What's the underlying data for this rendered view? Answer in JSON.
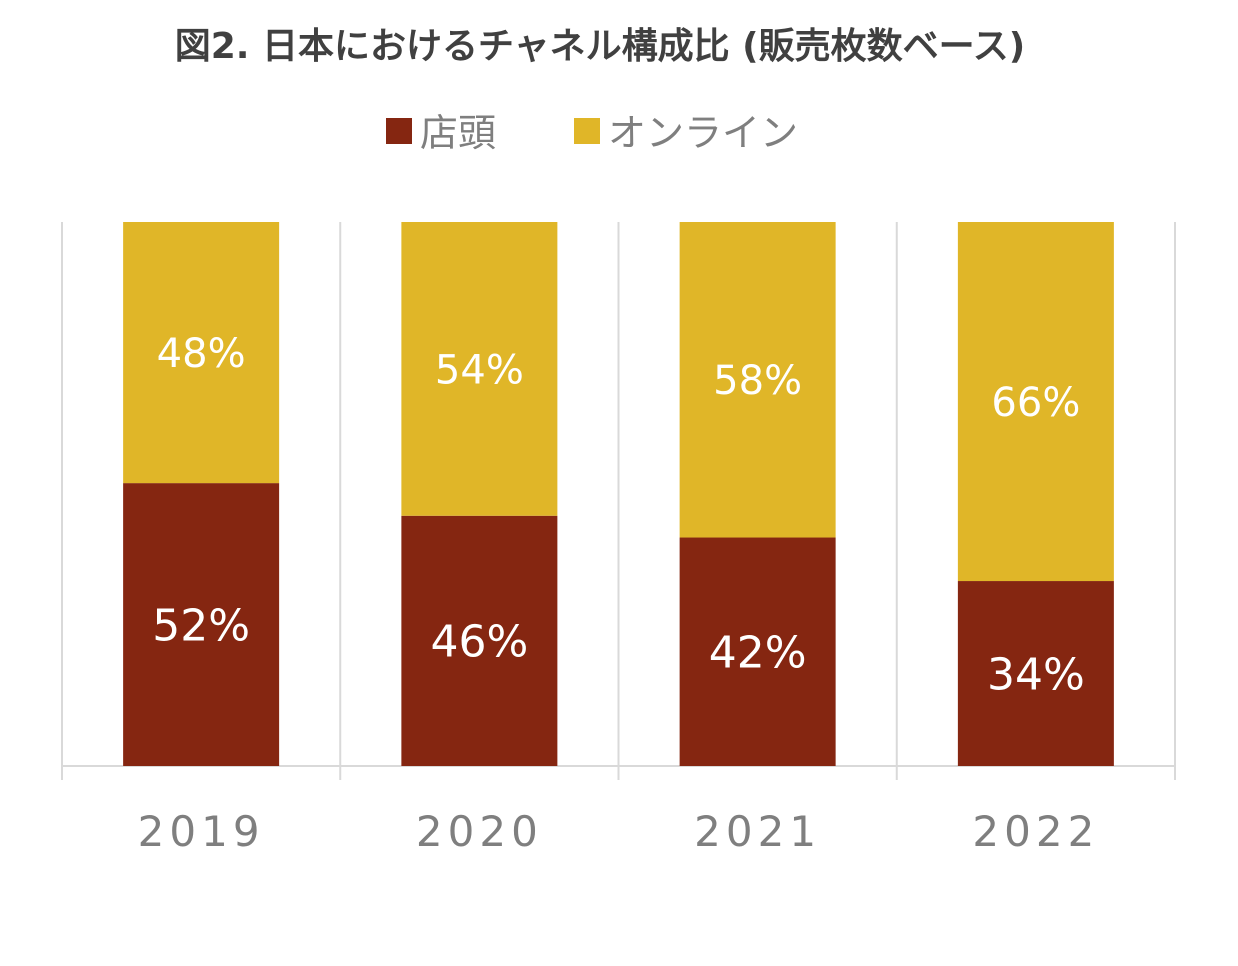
{
  "chart_data": {
    "type": "bar",
    "stacked": true,
    "normalized": true,
    "title": "図2. 日本におけるチャネル構成比 (販売枚数ベース)",
    "categories": [
      "2019",
      "2020",
      "2021",
      "2022"
    ],
    "series": [
      {
        "name": "店頭",
        "values": [
          52,
          46,
          42,
          34
        ],
        "color": "#852611",
        "labels": [
          "52%",
          "46%",
          "42%",
          "34%"
        ]
      },
      {
        "name": "オンライン",
        "values": [
          48,
          54,
          58,
          66
        ],
        "color": "#e0b628",
        "labels": [
          "48%",
          "54%",
          "58%",
          "66%"
        ]
      }
    ],
    "ylim": [
      0,
      100
    ],
    "legend_position": "top",
    "grid": "vertical separators",
    "gridline_color": "#d9d9d9"
  }
}
